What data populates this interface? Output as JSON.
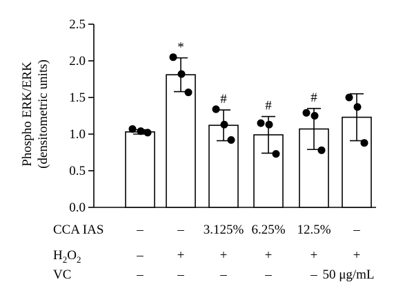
{
  "chart_data": {
    "type": "bar",
    "ylabel_lines": [
      "Phospho ERK/ERK",
      "(densitometric units)"
    ],
    "ylim": [
      0,
      2.5
    ],
    "yticks": [
      "0.0",
      "0.5",
      "1.0",
      "1.5",
      "2.0",
      "2.5"
    ],
    "grid": false,
    "bars": [
      {
        "mean": 1.03,
        "err": 0.03,
        "points": [
          1.07,
          1.04,
          1.02
        ],
        "annotation": ""
      },
      {
        "mean": 1.81,
        "err": 0.23,
        "points": [
          2.05,
          1.82,
          1.57
        ],
        "annotation": "*"
      },
      {
        "mean": 1.12,
        "err": 0.21,
        "points": [
          1.34,
          1.13,
          0.92
        ],
        "annotation": "#"
      },
      {
        "mean": 0.99,
        "err": 0.25,
        "points": [
          1.15,
          1.13,
          0.73
        ],
        "annotation": "#"
      },
      {
        "mean": 1.07,
        "err": 0.28,
        "points": [
          1.29,
          1.25,
          0.78
        ],
        "annotation": "#"
      },
      {
        "mean": 1.23,
        "err": 0.32,
        "points": [
          1.5,
          1.37,
          0.88
        ],
        "annotation": ""
      }
    ],
    "conditions": [
      {
        "label": "CCA IAS",
        "values": [
          "–",
          "–",
          "3.125%",
          "6.25%",
          "12.5%",
          "–"
        ]
      },
      {
        "label_main": "H",
        "label_sub1": "2",
        "label_mid": "O",
        "label_sub2": "2",
        "values": [
          "–",
          "+",
          "+",
          "+",
          "+",
          "+"
        ]
      },
      {
        "label": "VC",
        "values": [
          "–",
          "–",
          "–",
          "–",
          "–",
          "50 μg/mL"
        ]
      }
    ]
  }
}
